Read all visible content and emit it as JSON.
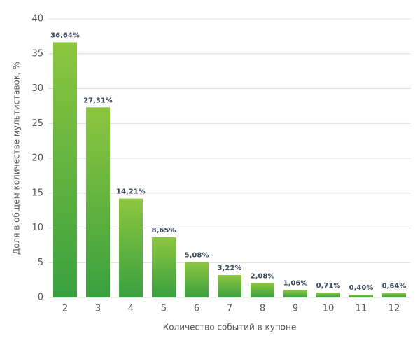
{
  "chart_data": {
    "type": "bar",
    "x_label": "Количество событий в купоне",
    "y_label": "Доля в общем количестве мультиставок, %",
    "categories": [
      "2",
      "3",
      "4",
      "5",
      "6",
      "7",
      "8",
      "9",
      "10",
      "11",
      "12"
    ],
    "values": [
      36.64,
      27.31,
      14.21,
      8.65,
      5.08,
      3.22,
      2.08,
      1.06,
      0.71,
      0.4,
      0.64
    ],
    "value_labels": [
      "36,64%",
      "27,31%",
      "14,21%",
      "8,65%",
      "5,08%",
      "3,22%",
      "2,08%",
      "1,06%",
      "0,71%",
      "0,40%",
      "0,64%"
    ],
    "color": [
      "#8dc63f",
      "#39a03f"
    ],
    "ylim": [
      0,
      40
    ],
    "yticks": [
      0,
      5,
      10,
      15,
      20,
      25,
      30,
      35,
      40
    ],
    "grid": true
  }
}
